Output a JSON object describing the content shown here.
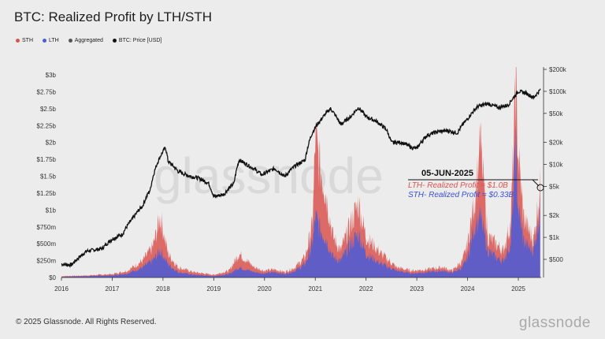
{
  "title": "BTC: Realized Profit by LTH/STH",
  "legend": [
    {
      "label": "STH",
      "color": "#d9534f"
    },
    {
      "label": "LTH",
      "color": "#4a5bd8"
    },
    {
      "label": "Aggregated",
      "color": "#555555"
    },
    {
      "label": "BTC: Price [USD]",
      "color": "#111111"
    }
  ],
  "footer": "© 2025 Glassnode. All Rights Reserved.",
  "logo": "glassnode",
  "watermark": "glassnode",
  "annotation": {
    "date": "05-JUN-2025",
    "lth_text": "LTH- Realized Profit = $1.0B",
    "sth_text": "STH- Realized Profit = $0.33B"
  },
  "chart_data": {
    "type": "area",
    "x_ticks": [
      "2016",
      "2017",
      "2018",
      "2019",
      "2020",
      "2021",
      "2022",
      "2023",
      "2024",
      "2025"
    ],
    "y_left_ticks": [
      "$0",
      "$250m",
      "$500m",
      "$750m",
      "$1b",
      "$1.25b",
      "$1.5b",
      "$1.75b",
      "$2b",
      "$2.25b",
      "$2.5b",
      "$2.75b",
      "$3b"
    ],
    "y_left_range": [
      0,
      3.0
    ],
    "y_left_unit": "USD billions",
    "y_right_ticks": [
      "$500",
      "$1k",
      "$2k",
      "$5k",
      "$10k",
      "$20k",
      "$50k",
      "$100k",
      "$200k"
    ],
    "y_right_values": [
      500,
      1000,
      2000,
      5000,
      10000,
      20000,
      50000,
      100000,
      200000
    ],
    "y_right_scale": "log",
    "x_range": [
      2016.0,
      2025.45
    ],
    "series": [
      {
        "name": "STH",
        "color": "#d9534f",
        "x": [
          2016.0,
          2016.5,
          2017.0,
          2017.3,
          2017.6,
          2017.8,
          2017.95,
          2018.1,
          2018.3,
          2018.6,
          2019.0,
          2019.3,
          2019.5,
          2019.8,
          2020.0,
          2020.2,
          2020.4,
          2020.6,
          2020.8,
          2020.95,
          2021.0,
          2021.1,
          2021.2,
          2021.35,
          2021.5,
          2021.7,
          2021.85,
          2022.0,
          2022.3,
          2022.6,
          2022.9,
          2023.2,
          2023.5,
          2023.7,
          2023.9,
          2024.0,
          2024.15,
          2024.25,
          2024.4,
          2024.55,
          2024.7,
          2024.85,
          2024.95,
          2025.0,
          2025.1,
          2025.2,
          2025.3,
          2025.43
        ],
        "values": [
          0.02,
          0.03,
          0.05,
          0.1,
          0.25,
          0.45,
          0.9,
          0.35,
          0.15,
          0.08,
          0.04,
          0.1,
          0.35,
          0.15,
          0.1,
          0.12,
          0.08,
          0.15,
          0.3,
          0.8,
          2.05,
          1.6,
          1.3,
          0.6,
          0.4,
          0.8,
          1.1,
          0.6,
          0.35,
          0.15,
          0.1,
          0.12,
          0.15,
          0.1,
          0.25,
          0.5,
          1.2,
          2.0,
          0.6,
          0.5,
          0.4,
          0.8,
          2.8,
          1.8,
          0.9,
          0.7,
          0.55,
          1.33
        ]
      },
      {
        "name": "LTH",
        "color": "#4a5bd8",
        "x": [
          2016.0,
          2016.5,
          2017.0,
          2017.3,
          2017.6,
          2017.8,
          2017.95,
          2018.1,
          2018.3,
          2018.6,
          2019.0,
          2019.3,
          2019.5,
          2019.8,
          2020.0,
          2020.2,
          2020.4,
          2020.6,
          2020.8,
          2020.95,
          2021.0,
          2021.1,
          2021.2,
          2021.35,
          2021.5,
          2021.7,
          2021.85,
          2022.0,
          2022.3,
          2022.6,
          2022.9,
          2023.2,
          2023.5,
          2023.7,
          2023.9,
          2024.0,
          2024.15,
          2024.25,
          2024.4,
          2024.55,
          2024.7,
          2024.85,
          2024.95,
          2025.0,
          2025.1,
          2025.2,
          2025.3,
          2025.43
        ],
        "values": [
          0.01,
          0.02,
          0.03,
          0.06,
          0.15,
          0.25,
          0.4,
          0.2,
          0.08,
          0.04,
          0.02,
          0.05,
          0.15,
          0.08,
          0.06,
          0.08,
          0.05,
          0.1,
          0.2,
          0.5,
          0.9,
          0.7,
          0.6,
          0.3,
          0.25,
          0.5,
          0.65,
          0.35,
          0.2,
          0.1,
          0.06,
          0.08,
          0.1,
          0.07,
          0.15,
          0.3,
          0.8,
          0.9,
          0.4,
          0.3,
          0.25,
          0.5,
          1.9,
          1.0,
          0.55,
          0.45,
          0.4,
          1.0
        ]
      },
      {
        "name": "BTC: Price [USD]",
        "color": "#111111",
        "axis": "right",
        "x": [
          2016.0,
          2016.2,
          2016.5,
          2016.8,
          2017.0,
          2017.2,
          2017.4,
          2017.6,
          2017.75,
          2017.95,
          2018.05,
          2018.1,
          2018.3,
          2018.5,
          2018.7,
          2018.9,
          2019.0,
          2019.2,
          2019.4,
          2019.5,
          2019.7,
          2019.95,
          2020.2,
          2020.4,
          2020.6,
          2020.8,
          2020.95,
          2021.1,
          2021.3,
          2021.5,
          2021.7,
          2021.85,
          2022.0,
          2022.2,
          2022.4,
          2022.5,
          2022.7,
          2022.9,
          2023.0,
          2023.2,
          2023.4,
          2023.6,
          2023.8,
          2024.0,
          2024.2,
          2024.4,
          2024.6,
          2024.8,
          2024.95,
          2025.0,
          2025.15,
          2025.3,
          2025.43
        ],
        "values": [
          430,
          420,
          650,
          700,
          950,
          1100,
          1800,
          2700,
          4500,
          13000,
          17000,
          11000,
          8000,
          7000,
          6500,
          5500,
          3600,
          3900,
          5500,
          11500,
          9500,
          7200,
          8800,
          6800,
          9500,
          11500,
          28000,
          40000,
          58000,
          35000,
          45000,
          60000,
          45000,
          39000,
          30000,
          20000,
          20000,
          17000,
          16500,
          25000,
          28000,
          29000,
          27000,
          42000,
          62000,
          68000,
          60000,
          65000,
          90000,
          100000,
          95000,
          82000,
          104000
        ]
      }
    ]
  }
}
